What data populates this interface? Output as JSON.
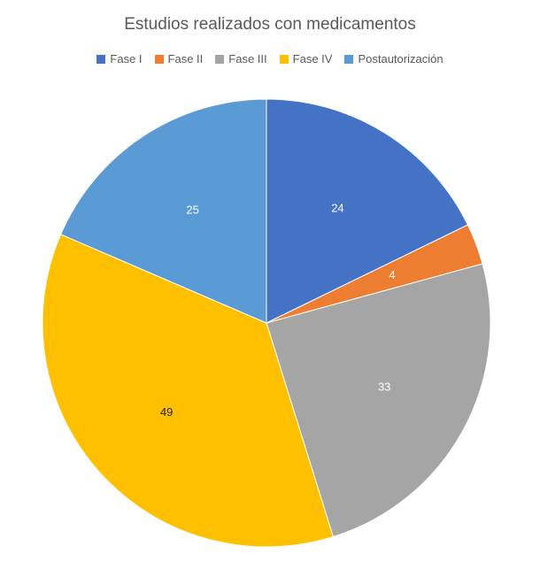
{
  "chart_data": {
    "type": "pie",
    "title": "Estudios realizados con medicamentos",
    "categories": [
      "Fase I",
      "Fase II",
      "Fase III",
      "Fase IV",
      "Postautorización"
    ],
    "values": [
      24,
      4,
      33,
      49,
      25
    ],
    "colors": [
      "#4472C4",
      "#ED7D31",
      "#A5A5A5",
      "#FFC000",
      "#5B9BD5"
    ],
    "label_colors": [
      "#ffffff",
      "#ffffff",
      "#ffffff",
      "#262626",
      "#ffffff"
    ],
    "legend_position": "top",
    "start_angle_deg": 0,
    "direction": "clockwise"
  }
}
